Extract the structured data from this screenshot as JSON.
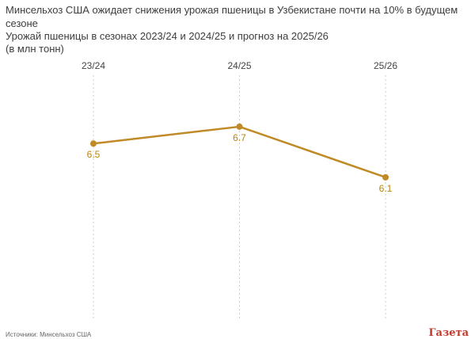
{
  "title": "Минсельхоз США ожидает снижения урожая пшеницы в Узбекистане почти на 10% в будущем сезоне",
  "subtitle_line1": "Урожай пшеницы в сезонах 2023/24 и 2024/25 и прогноз на 2025/26",
  "subtitle_line2": "(в млн тонн)",
  "footer": {
    "source": "Источники: Минсельхоз США",
    "logo": "Газета"
  },
  "colors": {
    "line": "#c08a26",
    "label": "#b8860b",
    "grid": "#cccccc",
    "axis_text": "#444444"
  },
  "chart_data": {
    "type": "line",
    "categories": [
      "23/24",
      "24/25",
      "25/26"
    ],
    "series": [
      {
        "values": [
          6.5,
          6.7,
          6.1
        ]
      }
    ],
    "data_labels": [
      "6.5",
      "6.7",
      "6.1"
    ],
    "ylim": [
      4.4,
      7.3
    ],
    "grid": "vertical-dashed",
    "legend": "none"
  }
}
